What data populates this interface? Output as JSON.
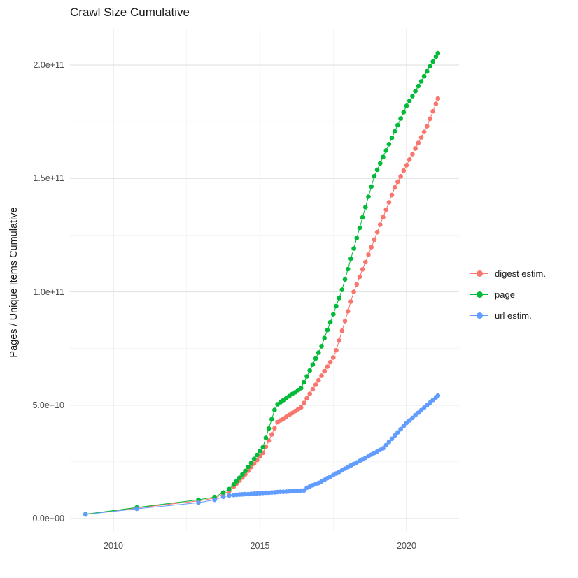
{
  "chart_data": {
    "type": "scatter",
    "title": "Crawl Size Cumulative",
    "xlabel": "",
    "ylabel": "Pages / Unique Items Cumulative",
    "legend_position": "right",
    "grid": true,
    "x_range": [
      2008.4,
      2021.9
    ],
    "y_range_e9": [
      -8,
      216
    ],
    "value_unit": 1000000000.0,
    "x_ticks": [
      {
        "label": "2010",
        "value": 2010
      },
      {
        "label": "2015",
        "value": 2015
      },
      {
        "label": "2020",
        "value": 2020
      }
    ],
    "x_minor_ticks": [
      2012.5,
      2017.5
    ],
    "y_ticks": [
      {
        "label": "0.0e+00",
        "value_e9": 0
      },
      {
        "label": "5.0e+10",
        "value_e9": 50
      },
      {
        "label": "1.0e+11",
        "value_e9": 100
      },
      {
        "label": "1.5e+11",
        "value_e9": 150
      },
      {
        "label": "2.0e+11",
        "value_e9": 200
      }
    ],
    "y_minor_ticks_e9": [
      25,
      75,
      125,
      175
    ],
    "series": [
      {
        "name": "digest estim.",
        "color": "#F8766D",
        "points_year_value_e9": [
          [
            2009.05,
            1.9
          ],
          [
            2010.8,
            4.7
          ],
          [
            2012.9,
            7.8
          ],
          [
            2013.45,
            9.0
          ],
          [
            2013.75,
            10.8
          ],
          [
            2013.95,
            12.2
          ],
          [
            2014.1,
            14
          ],
          [
            2014.2,
            15.4
          ],
          [
            2014.3,
            16.8
          ],
          [
            2014.4,
            18.1
          ],
          [
            2014.5,
            19.5
          ],
          [
            2014.6,
            21.1
          ],
          [
            2014.7,
            22.7
          ],
          [
            2014.8,
            24.2
          ],
          [
            2014.9,
            25.8
          ],
          [
            2015.0,
            27.4
          ],
          [
            2015.1,
            29
          ],
          [
            2015.2,
            31.7
          ],
          [
            2015.3,
            34.4
          ],
          [
            2015.4,
            37.1
          ],
          [
            2015.5,
            39.8
          ],
          [
            2015.6,
            42.5
          ],
          [
            2015.7,
            43.3
          ],
          [
            2015.8,
            44.1
          ],
          [
            2015.9,
            44.9
          ],
          [
            2016.0,
            45.7
          ],
          [
            2016.1,
            46.5
          ],
          [
            2016.2,
            47.4
          ],
          [
            2016.3,
            48.2
          ],
          [
            2016.4,
            49
          ],
          [
            2016.5,
            51
          ],
          [
            2016.6,
            53
          ],
          [
            2016.7,
            55
          ],
          [
            2016.8,
            57
          ],
          [
            2016.9,
            59
          ],
          [
            2017.0,
            61
          ],
          [
            2017.1,
            63
          ],
          [
            2017.2,
            65
          ],
          [
            2017.3,
            67
          ],
          [
            2017.4,
            69
          ],
          [
            2017.5,
            71
          ],
          [
            2017.6,
            74.2
          ],
          [
            2017.7,
            78.5
          ],
          [
            2017.8,
            82.8
          ],
          [
            2017.9,
            87.1
          ],
          [
            2018.0,
            91.4
          ],
          [
            2018.1,
            95.7
          ],
          [
            2018.2,
            100
          ],
          [
            2018.3,
            103.3
          ],
          [
            2018.4,
            106.6
          ],
          [
            2018.5,
            109.9
          ],
          [
            2018.6,
            113.1
          ],
          [
            2018.7,
            116.4
          ],
          [
            2018.8,
            119.7
          ],
          [
            2018.9,
            123
          ],
          [
            2019.0,
            126.3
          ],
          [
            2019.1,
            129.6
          ],
          [
            2019.2,
            132.9
          ],
          [
            2019.3,
            136.2
          ],
          [
            2019.4,
            139.4
          ],
          [
            2019.5,
            142.7
          ],
          [
            2019.6,
            146
          ],
          [
            2019.7,
            148.5
          ],
          [
            2019.8,
            150.9
          ],
          [
            2019.9,
            153.4
          ],
          [
            2020.0,
            155.8
          ],
          [
            2020.1,
            158.3
          ],
          [
            2020.2,
            160.7
          ],
          [
            2020.3,
            163.2
          ],
          [
            2020.4,
            165.6
          ],
          [
            2020.5,
            168.1
          ],
          [
            2020.6,
            170.5
          ],
          [
            2020.7,
            173
          ],
          [
            2020.8,
            176.3
          ],
          [
            2020.9,
            179.6
          ],
          [
            2021.0,
            182.9
          ],
          [
            2021.07,
            185.2
          ]
        ]
      },
      {
        "name": "page",
        "color": "#00BA38",
        "points_year_value_e9": [
          [
            2009.05,
            1.9
          ],
          [
            2010.8,
            4.9
          ],
          [
            2012.9,
            8.3
          ],
          [
            2013.45,
            9.5
          ],
          [
            2013.75,
            11.5
          ],
          [
            2013.95,
            13
          ],
          [
            2014.1,
            15
          ],
          [
            2014.2,
            16.5
          ],
          [
            2014.3,
            18
          ],
          [
            2014.4,
            19.5
          ],
          [
            2014.5,
            21
          ],
          [
            2014.6,
            22.8
          ],
          [
            2014.7,
            24.5
          ],
          [
            2014.8,
            26.3
          ],
          [
            2014.9,
            28
          ],
          [
            2015.0,
            29.8
          ],
          [
            2015.1,
            31.5
          ],
          [
            2015.2,
            35.6
          ],
          [
            2015.3,
            39.7
          ],
          [
            2015.4,
            43.8
          ],
          [
            2015.5,
            47.9
          ],
          [
            2015.6,
            50.4
          ],
          [
            2015.7,
            51.3
          ],
          [
            2015.8,
            52.2
          ],
          [
            2015.9,
            53.1
          ],
          [
            2016.0,
            54
          ],
          [
            2016.1,
            54.9
          ],
          [
            2016.2,
            55.7
          ],
          [
            2016.3,
            56.6
          ],
          [
            2016.4,
            57.5
          ],
          [
            2016.5,
            60.1
          ],
          [
            2016.6,
            62.7
          ],
          [
            2016.7,
            65.3
          ],
          [
            2016.8,
            67.9
          ],
          [
            2016.9,
            70.6
          ],
          [
            2017.0,
            73.2
          ],
          [
            2017.1,
            76
          ],
          [
            2017.2,
            79.6
          ],
          [
            2017.3,
            83.1
          ],
          [
            2017.4,
            86.6
          ],
          [
            2017.5,
            90.1
          ],
          [
            2017.6,
            93.7
          ],
          [
            2017.7,
            97.2
          ],
          [
            2017.8,
            100.9
          ],
          [
            2017.9,
            105.5
          ],
          [
            2018.0,
            110
          ],
          [
            2018.1,
            114.6
          ],
          [
            2018.2,
            119.1
          ],
          [
            2018.3,
            123.7
          ],
          [
            2018.4,
            128.2
          ],
          [
            2018.5,
            132.8
          ],
          [
            2018.6,
            137.3
          ],
          [
            2018.7,
            141.9
          ],
          [
            2018.8,
            146.4
          ],
          [
            2018.9,
            151
          ],
          [
            2019.0,
            153.8
          ],
          [
            2019.1,
            156.6
          ],
          [
            2019.2,
            159.4
          ],
          [
            2019.3,
            162.3
          ],
          [
            2019.4,
            165.1
          ],
          [
            2019.5,
            167.9
          ],
          [
            2019.6,
            170.7
          ],
          [
            2019.7,
            173.5
          ],
          [
            2019.8,
            176.4
          ],
          [
            2019.9,
            179.2
          ],
          [
            2020.0,
            182
          ],
          [
            2020.1,
            184.2
          ],
          [
            2020.2,
            186.3
          ],
          [
            2020.3,
            188.5
          ],
          [
            2020.4,
            190.7
          ],
          [
            2020.5,
            192.8
          ],
          [
            2020.6,
            195
          ],
          [
            2020.7,
            197.2
          ],
          [
            2020.8,
            199.4
          ],
          [
            2020.9,
            201.5
          ],
          [
            2021.0,
            203.7
          ],
          [
            2021.07,
            205.2
          ]
        ]
      },
      {
        "name": "url estim.",
        "color": "#619CFF",
        "points_year_value_e9": [
          [
            2009.05,
            1.8
          ],
          [
            2010.8,
            4.3
          ],
          [
            2012.9,
            7.0
          ],
          [
            2013.45,
            8.3
          ],
          [
            2013.75,
            9.6
          ],
          [
            2013.95,
            10.2
          ],
          [
            2014.1,
            10.4
          ],
          [
            2014.2,
            10.5
          ],
          [
            2014.3,
            10.6
          ],
          [
            2014.4,
            10.7
          ],
          [
            2014.5,
            10.8
          ],
          [
            2014.6,
            10.8
          ],
          [
            2014.7,
            10.9
          ],
          [
            2014.8,
            11.0
          ],
          [
            2014.9,
            11.1
          ],
          [
            2015.0,
            11.2
          ],
          [
            2015.1,
            11.3
          ],
          [
            2015.2,
            11.4
          ],
          [
            2015.3,
            11.4
          ],
          [
            2015.4,
            11.5
          ],
          [
            2015.5,
            11.6
          ],
          [
            2015.6,
            11.7
          ],
          [
            2015.7,
            11.8
          ],
          [
            2015.8,
            11.8
          ],
          [
            2015.9,
            11.9
          ],
          [
            2016.0,
            12.0
          ],
          [
            2016.1,
            12.1
          ],
          [
            2016.2,
            12.2
          ],
          [
            2016.3,
            12.2
          ],
          [
            2016.4,
            12.3
          ],
          [
            2016.5,
            12.4
          ],
          [
            2016.6,
            13.6
          ],
          [
            2016.7,
            14.1
          ],
          [
            2016.8,
            14.7
          ],
          [
            2016.9,
            15.2
          ],
          [
            2017.0,
            15.7
          ],
          [
            2017.1,
            16.4
          ],
          [
            2017.2,
            17.1
          ],
          [
            2017.3,
            17.8
          ],
          [
            2017.4,
            18.5
          ],
          [
            2017.5,
            19.2
          ],
          [
            2017.6,
            19.9
          ],
          [
            2017.7,
            20.6
          ],
          [
            2017.8,
            21.3
          ],
          [
            2017.9,
            22
          ],
          [
            2018.0,
            22.7
          ],
          [
            2018.1,
            23.4
          ],
          [
            2018.2,
            24.1
          ],
          [
            2018.3,
            24.7
          ],
          [
            2018.4,
            25.4
          ],
          [
            2018.5,
            26.1
          ],
          [
            2018.6,
            26.8
          ],
          [
            2018.7,
            27.5
          ],
          [
            2018.8,
            28.2
          ],
          [
            2018.9,
            28.9
          ],
          [
            2019.0,
            29.6
          ],
          [
            2019.1,
            30.3
          ],
          [
            2019.2,
            31
          ],
          [
            2019.3,
            32.4
          ],
          [
            2019.4,
            33.8
          ],
          [
            2019.5,
            35.2
          ],
          [
            2019.6,
            36.6
          ],
          [
            2019.7,
            38
          ],
          [
            2019.8,
            39.4
          ],
          [
            2019.9,
            40.8
          ],
          [
            2020.0,
            42.2
          ],
          [
            2020.1,
            43.3
          ],
          [
            2020.2,
            44.4
          ],
          [
            2020.3,
            45.6
          ],
          [
            2020.4,
            46.7
          ],
          [
            2020.5,
            47.8
          ],
          [
            2020.6,
            48.9
          ],
          [
            2020.7,
            50
          ],
          [
            2020.8,
            51.1
          ],
          [
            2020.9,
            52.3
          ],
          [
            2021.0,
            53.4
          ],
          [
            2021.07,
            54.2
          ]
        ]
      }
    ],
    "style": {
      "major_grid_color": "#e3e3e3",
      "minor_grid_color": "#f1f1f1",
      "tick_label_color": "#4d4d4d",
      "point_radius": 3.3
    }
  }
}
